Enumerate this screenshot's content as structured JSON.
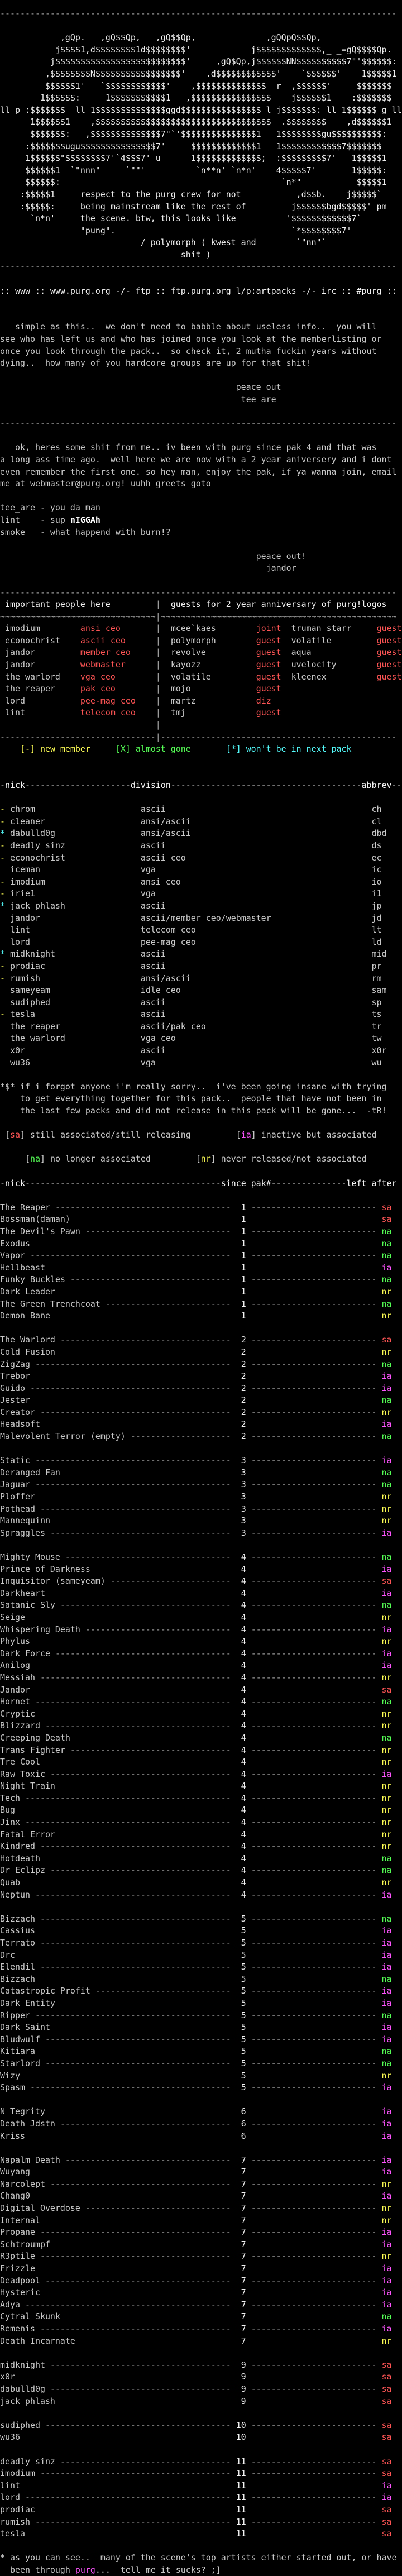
{
  "palette": {
    "background": "#000000",
    "text": "#c8c8c8",
    "bright": "#f2f2f2",
    "dim": "#9c9c9c",
    "red": "#fc5454",
    "green": "#54fc54",
    "yellow": "#fcfc54",
    "cyan": "#54fcfc",
    "magenta": "#fc54fc"
  },
  "logo": {
    "lines": [
      "            ,gQp.   ,gQ$$Qp,   ,gQ$$Qp,              ,gQQpQ$$Qp,",
      "           j$$$$1,d$$$$$$$$1d$$$$$$$$'            j$$$$$$$$$$$$$,_ _=gQ$$$$Qp.",
      "          j$$$$$$$$$$$$$$$$$$$$$$$$$$'     ,gQ$Qp,j$$$$$$NN$$$$$$$$$$7\"'$$$$$$:",
      "         ,$$$$$$$$N$$$$$$$$$$$$$$$$$'    .d$$$$$$$$$$$$'    `$$$$$$'    1$$$$$1",
      "         $$$$$$1'   `$$$$$$$$$$$$'    ,$$$$$$$$$$$$$$  r  ,$$$$$$'     $$$$$$$",
      "        1$$$$$$:     1$$$$$$$$$$$1   ,$$$$$$$$$$$$$$$$    j$$$$$$1    :$$$$$$$",
      "ll p :$$$$$$$  ll 1$$$$$$$$$$$$$$ggd$$$$$$$$$$$$$$$$ l j$$$$$$$: ll 1$$$$$$ g ll",
      "      1$$$$$$1    ,$$$$$$$$$$$$$$$$$$$$$$$$$$$$$$$$$$$  .$$$$$$$$    ,d$$$$$$1",
      "      $$$$$$$:   ,$$$$$$$$$$$$$$7\"`'$$$$$$$$$$$$$$$1   1$$$$$$$$gu$$$$$$$$$$:",
      "     :$$$$$$$ugu$$$$$$$$$$$$$$$7'     $$$$$$$$$$$$$1   1$$$$$$$$$$$$7$$$$$$$",
      "     1$$$$$$\"$$$$$$$$7'`4$$$7' u      1$$$$$$$$$$$$$;  :$$$$$$$$$7'   1$$$$$1",
      "     $$$$$$1  `\"nnn\"     `\"\"'          `n**n' `n*n'    4$$$$$7'       1$$$$$:",
      "     $$$$$$:                                            `n*\"           $$$$$1",
      "    :$$$$$1     respect to the purg crew for not           ,d$$b.    j$$$$$`",
      "    :$$$$$:     being mainstream like the rest of         j$$$$$$bgd$$$$$' pm",
      "      `n*n'     the scene. btw, this looks like          '$$$$$$$$$$$$7`",
      "                \"pung\".                                   `*$$$$$$$$7'"
    ],
    "credit": [
      "                            / polymorph ( kwest and        `\"nn\"`",
      "                                    shit )"
    ]
  },
  "header": {
    "links_line": ":: www :: www.purg.org -/- ftp :: ftp.purg.org l/p:artpacks -/- irc :: #purg ::"
  },
  "intro": {
    "lines": [
      "   simple as this..  we don't need to babble about useless info..  you will",
      "see who has left us and who has joined once you look at the memberlisting or",
      "once you look through the pack..  so check it, 2 mutha fuckin years without",
      "dying..  how many of you hardcore groups are up for that shit!"
    ],
    "signoff": [
      "                                               peace out",
      "                                                tee_are"
    ]
  },
  "jandor_msg": {
    "lines": [
      "   ok, heres some shit from me.. iv been with purg since pak 4 and that was",
      "a long ass time ago.  well here we are now with a 2 year aniversery and i dont",
      "even remember the first one. so hey man, enjoy the pak, if ya wanna join, email",
      "me at webmaster@purg.org! uuhh greets goto"
    ],
    "signoff": [
      "                                                   peace out!",
      "                                                     jandor"
    ]
  },
  "greets": {
    "rows": [
      {
        "nick": "tee_are",
        "text": "you da man",
        "highlight": ""
      },
      {
        "nick": "lint",
        "text": "sup ",
        "highlight": "nIGGAh"
      },
      {
        "nick": "smoke",
        "text": "what happend with burn!?",
        "highlight": ""
      }
    ]
  },
  "people": {
    "title_left": "important people here",
    "title_right": "guests for 2 year anniversary of purg!logos",
    "rows": [
      [
        "imodium",
        "ansi ceo",
        "mcee`kaes",
        "joint",
        "truman starr",
        "guest"
      ],
      [
        "econochrist",
        "ascii ceo",
        "polymorph",
        "guest",
        "volatile",
        "guest"
      ],
      [
        "jandor",
        "member ceo",
        "revolve",
        "guest",
        "aqua",
        "guest"
      ],
      [
        "jandor",
        "webmaster",
        "kayozz",
        "guest",
        "uvelocity",
        "guest"
      ],
      [
        "the warlord",
        "vga ceo",
        "volatile",
        "guest",
        "kleenex",
        "guest"
      ],
      [
        "the reaper",
        "pak ceo",
        "mojo",
        "guest",
        "",
        ""
      ],
      [
        "lord",
        "pee-mag ceo",
        "martz",
        "diz",
        "",
        ""
      ],
      [
        "lint",
        "telecom ceo",
        "tmj",
        "guest",
        "",
        ""
      ]
    ]
  },
  "legend1": {
    "items": [
      [
        "[-] new member",
        "yel"
      ],
      [
        "[X] almost gone",
        "grn"
      ],
      [
        "[*] won't be in next pack",
        "cyn"
      ]
    ]
  },
  "members": {
    "header": {
      "nick": "nick",
      "division": "division",
      "abbrev": "abbrev"
    },
    "rows": [
      [
        "-",
        "chrom",
        "ascii",
        "ch"
      ],
      [
        "-",
        "cleaner",
        "ansi/ascii",
        "cl"
      ],
      [
        "*",
        "dabulld0g",
        "ansi/ascii",
        "dbd"
      ],
      [
        "-",
        "deadly sinz",
        "ascii",
        "ds"
      ],
      [
        "-",
        "econochrist",
        "ascii ceo",
        "ec"
      ],
      [
        "",
        "iceman",
        "vga",
        "ic"
      ],
      [
        "-",
        "imodium",
        "ansi ceo",
        "io"
      ],
      [
        "-",
        "irie1",
        "vga",
        "i1"
      ],
      [
        "*",
        "jack phlash",
        "ascii",
        "jp"
      ],
      [
        "",
        "jandor",
        "ascii/member ceo/webmaster",
        "jd"
      ],
      [
        "",
        "lint",
        "telecom ceo",
        "lt"
      ],
      [
        "",
        "lord",
        "pee-mag ceo",
        "ld"
      ],
      [
        "*",
        "midknight",
        "ascii",
        "mid"
      ],
      [
        "-",
        "prodiac",
        "ascii",
        "pr"
      ],
      [
        "-",
        "rumish",
        "ansi/ascii",
        "rm"
      ],
      [
        "",
        "sameyeam",
        "idle ceo",
        "sam"
      ],
      [
        "",
        "sudiphed",
        "ascii",
        "sp"
      ],
      [
        "-",
        "tesla",
        "ascii",
        "ts"
      ],
      [
        "",
        "the reaper",
        "ascii/pak ceo",
        "tr"
      ],
      [
        "",
        "the warlord",
        "vga ceo",
        "tw"
      ],
      [
        "",
        "x0r",
        "ascii",
        "x0r"
      ],
      [
        "",
        "wu36",
        "vga",
        "wu"
      ]
    ]
  },
  "note": {
    "lines": [
      "*$* if i forgot anyone i'm really sorry..  i've been going insane with trying",
      "    to get everything together for this pack..  people that have not been in",
      "    the last few packs and did not release in this pack will be gone...  -tR!"
    ]
  },
  "legend2": {
    "line1": [
      [
        "sa",
        "red",
        "still associated/still releasing"
      ],
      [
        "ia",
        "mag",
        "inactive but associated"
      ]
    ],
    "line2": [
      [
        "na",
        "grn",
        "no longer associated"
      ],
      [
        "nr",
        "yel",
        "never released/not associated"
      ]
    ]
  },
  "history": {
    "header": {
      "nick": "nick",
      "since": "since pak#",
      "left": "left after"
    },
    "groups": [
      {
        "pak": 1,
        "rows": [
          [
            "The Reaper",
            1,
            "sa"
          ],
          [
            "Bossman(daman)",
            0,
            "sa"
          ],
          [
            "The Devil's Pawn",
            1,
            "na"
          ],
          [
            "Exodus",
            0,
            "na"
          ],
          [
            "Vapor",
            1,
            "na"
          ],
          [
            "Hellbeast",
            0,
            "ia"
          ],
          [
            "Funky Buckles",
            1,
            "na"
          ],
          [
            "Dark Leader",
            0,
            "nr"
          ],
          [
            "The Green Trenchcoat",
            1,
            "na"
          ],
          [
            "Demon Bane",
            0,
            "nr"
          ]
        ]
      },
      {
        "pak": 2,
        "rows": [
          [
            "The Warlord",
            1,
            "sa"
          ],
          [
            "Cold Fusion",
            0,
            "nr"
          ],
          [
            "ZigZag",
            1,
            "na"
          ],
          [
            "Trebor",
            0,
            "ia"
          ],
          [
            "Guido",
            1,
            "ia"
          ],
          [
            "Jester",
            0,
            "na"
          ],
          [
            "Creator",
            1,
            "nr"
          ],
          [
            "Headsoft",
            0,
            "ia"
          ],
          [
            "Malevolent Terror (empty)",
            1,
            "na"
          ]
        ]
      },
      {
        "pak": 3,
        "rows": [
          [
            "Static",
            1,
            "ia"
          ],
          [
            "Deranged Fan",
            0,
            "na"
          ],
          [
            "Jaguar",
            1,
            "na"
          ],
          [
            "Ploffer",
            0,
            "nr"
          ],
          [
            "Pothead",
            1,
            "nr"
          ],
          [
            "Mannequinn",
            0,
            "nr"
          ],
          [
            "Spraggles",
            1,
            "ia"
          ]
        ]
      },
      {
        "pak": 4,
        "rows": [
          [
            "Mighty Mouse",
            1,
            "na"
          ],
          [
            "Prince of Darkness",
            0,
            "ia"
          ],
          [
            "Inquisitor (sameyeam)",
            1,
            "sa"
          ],
          [
            "Darkheart",
            0,
            "ia"
          ],
          [
            "Satanic Sly",
            1,
            "na"
          ],
          [
            "Seige",
            0,
            "nr"
          ],
          [
            "Whispering Death",
            1,
            "ia"
          ],
          [
            "Phylus",
            0,
            "nr"
          ],
          [
            "Dark Force",
            1,
            "ia"
          ],
          [
            "Anilog",
            0,
            "ia"
          ],
          [
            "Messiah",
            1,
            "nr"
          ],
          [
            "Jandor",
            0,
            "sa"
          ],
          [
            "Hornet",
            1,
            "na"
          ],
          [
            "Cryptic",
            0,
            "nr"
          ],
          [
            "Blizzard",
            1,
            "nr"
          ],
          [
            "Creeping Death",
            0,
            "na"
          ],
          [
            "Trans Fighter",
            1,
            "nr"
          ],
          [
            "Tre Cool",
            0,
            "nr"
          ],
          [
            "Raw Toxic",
            1,
            "ia"
          ],
          [
            "Night Train",
            0,
            "nr"
          ],
          [
            "Tech",
            1,
            "nr"
          ],
          [
            "Bug",
            0,
            "nr"
          ],
          [
            "Jinx",
            1,
            "nr"
          ],
          [
            "Fatal Error",
            0,
            "nr"
          ],
          [
            "Kindred",
            1,
            "nr"
          ],
          [
            "Hotdeath",
            0,
            "na"
          ],
          [
            "Dr Eclipz",
            1,
            "na"
          ],
          [
            "Quab",
            0,
            "nr"
          ],
          [
            "Neptun",
            1,
            "ia"
          ]
        ]
      },
      {
        "pak": 5,
        "rows": [
          [
            "Bizzach",
            1,
            "na"
          ],
          [
            "Cassius",
            0,
            "ia"
          ],
          [
            "Terrato",
            1,
            "ia"
          ],
          [
            "Drc",
            0,
            "ia"
          ],
          [
            "Elendil",
            1,
            "ia"
          ],
          [
            "Bizzach",
            0,
            "na"
          ],
          [
            "Catastropic Profit",
            1,
            "ia"
          ],
          [
            "Dark Entity",
            0,
            "ia"
          ],
          [
            "Ripper",
            1,
            "na"
          ],
          [
            "Dark Saint",
            0,
            "ia"
          ],
          [
            "Bludwulf",
            1,
            "ia"
          ],
          [
            "Kitiara",
            0,
            "na"
          ],
          [
            "Starlord",
            1,
            "na"
          ],
          [
            "Wizy",
            0,
            "nr"
          ],
          [
            "Spasm",
            1,
            "ia"
          ]
        ]
      },
      {
        "pak": 6,
        "rows": [
          [
            "N Tegrity",
            0,
            "ia"
          ],
          [
            "Death Jdstn",
            1,
            "ia"
          ],
          [
            "Kriss",
            0,
            "ia"
          ]
        ]
      },
      {
        "pak": 7,
        "rows": [
          [
            "Napalm Death",
            1,
            "ia"
          ],
          [
            "Wuyang",
            0,
            "ia"
          ],
          [
            "Narcolept",
            1,
            "nr"
          ],
          [
            "Chang0",
            0,
            "ia"
          ],
          [
            "Digital Overdose",
            1,
            "nr"
          ],
          [
            "Internal",
            0,
            "nr"
          ],
          [
            "Propane",
            1,
            "ia"
          ],
          [
            "Schtroumpf",
            0,
            "ia"
          ],
          [
            "R3ptile",
            1,
            "nr"
          ],
          [
            "Frizzle",
            0,
            "ia"
          ],
          [
            "Deadpool",
            1,
            "ia"
          ],
          [
            "Hysteric",
            0,
            "ia"
          ],
          [
            "Adya",
            1,
            "ia"
          ],
          [
            "Cytral Skunk",
            0,
            "na"
          ],
          [
            "Remenis",
            1,
            "ia"
          ],
          [
            "Death Incarnate",
            0,
            "nr"
          ]
        ]
      },
      {
        "pak": 9,
        "rows": [
          [
            "midknight",
            1,
            "sa"
          ],
          [
            "x0r",
            0,
            "sa"
          ],
          [
            "dabulld0g",
            1,
            "sa"
          ],
          [
            "jack phlash",
            0,
            "sa"
          ]
        ]
      },
      {
        "pak": 10,
        "rows": [
          [
            "sudiphed",
            1,
            "sa"
          ],
          [
            "wu36",
            0,
            "sa"
          ]
        ]
      },
      {
        "pak": 11,
        "rows": [
          [
            "deadly sinz",
            1,
            "sa"
          ],
          [
            "imodium",
            1,
            "sa"
          ],
          [
            "lint",
            0,
            "ia"
          ],
          [
            "lord",
            1,
            "ia"
          ],
          [
            "prodiac",
            0,
            "sa"
          ],
          [
            "rumish",
            1,
            "sa"
          ],
          [
            "tesla",
            0,
            "sa"
          ]
        ]
      }
    ]
  },
  "final_note": {
    "line1": "* as you can see..  many of the scene's top artists either started out, or have",
    "pre": "  been through ",
    "purg": "purg",
    "post": "...  tell me it sucks? ;]"
  }
}
